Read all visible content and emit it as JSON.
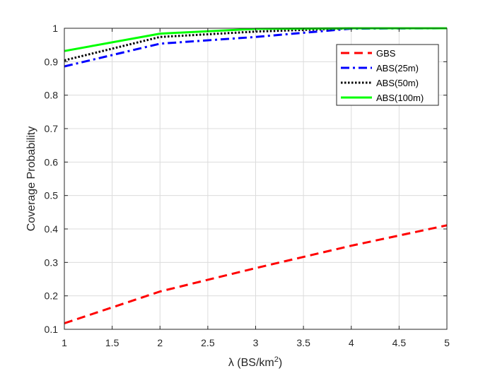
{
  "chart_data": {
    "type": "line",
    "x": [
      1,
      2,
      3,
      4,
      5
    ],
    "xlabel": "λ (BS/km",
    "xlabel_sup": "2",
    "xlabel_close": ")",
    "ylabel": "Coverage Probability",
    "xlim": [
      1,
      5
    ],
    "ylim": [
      0.1,
      1
    ],
    "xticks": [
      1,
      1.5,
      2,
      2.5,
      3,
      3.5,
      4,
      4.5,
      5
    ],
    "xtick_labels": [
      "1",
      "1.5",
      "2",
      "2.5",
      "3",
      "3.5",
      "4",
      "4.5",
      "5"
    ],
    "yticks": [
      0.1,
      0.2,
      0.3,
      0.4,
      0.5,
      0.6,
      0.7,
      0.8,
      0.9,
      1
    ],
    "ytick_labels": [
      "0.1",
      "0.2",
      "0.3",
      "0.4",
      "0.5",
      "0.6",
      "0.7",
      "0.8",
      "0.9",
      "1"
    ],
    "grid": true,
    "legend_position": "top-right",
    "series": [
      {
        "name": "GBS",
        "values": [
          0.118,
          0.213,
          0.283,
          0.35,
          0.411
        ],
        "color": "#ff0000",
        "dash": "dashed"
      },
      {
        "name": "ABS(25m)",
        "values": [
          0.886,
          0.954,
          0.974,
          0.999,
          1.0
        ],
        "color": "#0000ff",
        "dash": "dashdot"
      },
      {
        "name": "ABS(50m)",
        "values": [
          0.904,
          0.974,
          0.99,
          1.0,
          1.0
        ],
        "color": "#000000",
        "dash": "dotted"
      },
      {
        "name": "ABS(100m)",
        "values": [
          0.932,
          0.984,
          0.998,
          1.0,
          1.0
        ],
        "color": "#00ff00",
        "dash": "solid"
      }
    ]
  }
}
